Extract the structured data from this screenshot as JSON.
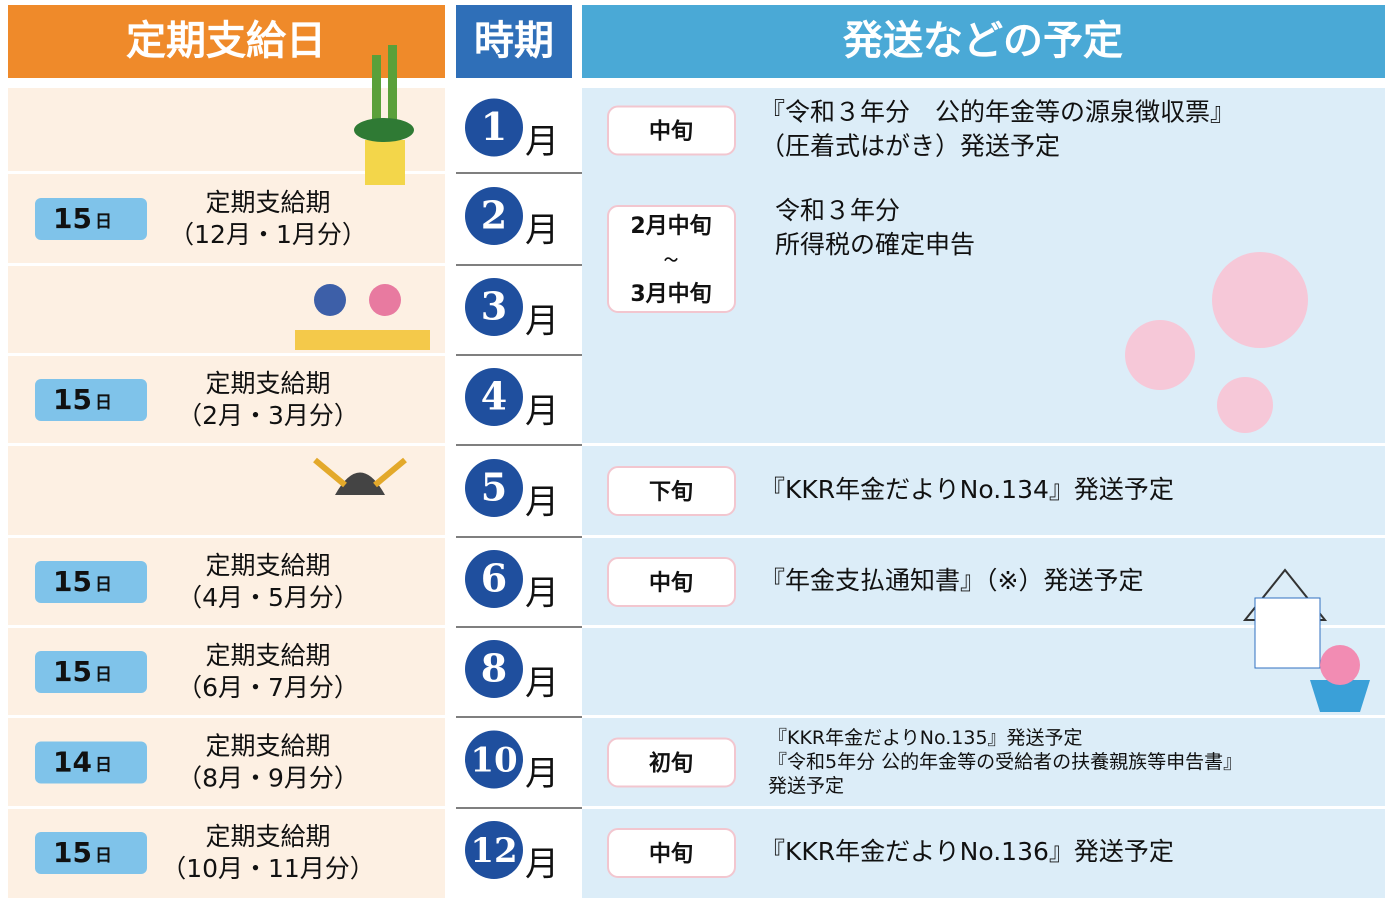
{
  "header": {
    "payday": "定期支給日",
    "period": "時期",
    "schedule": "発送などの予定"
  },
  "rows": [
    {
      "month": "1",
      "month_unit": "月",
      "schedule": {
        "badge": [
          "中旬"
        ],
        "lines": [
          "『令和３年分　公的年金等の源泉徴収票』",
          "（圧着式はがき）発送予定"
        ]
      }
    },
    {
      "day": "15",
      "day_unit": "日",
      "pay_title": "定期支給期",
      "pay_months": "（12月・1月分）",
      "month": "2",
      "month_unit": "月",
      "schedule": {
        "badge": [
          "2月中旬",
          "～",
          "3月中旬"
        ],
        "lines": [
          "令和３年分",
          "所得税の確定申告"
        ]
      }
    },
    {
      "month": "3",
      "month_unit": "月"
    },
    {
      "day": "15",
      "day_unit": "日",
      "pay_title": "定期支給期",
      "pay_months": "（2月・3月分）",
      "month": "4",
      "month_unit": "月"
    },
    {
      "month": "5",
      "month_unit": "月",
      "schedule": {
        "badge": [
          "下旬"
        ],
        "lines": [
          "『KKR年金だよりNo.134』発送予定"
        ]
      }
    },
    {
      "day": "15",
      "day_unit": "日",
      "pay_title": "定期支給期",
      "pay_months": "（4月・5月分）",
      "month": "6",
      "month_unit": "月",
      "schedule": {
        "badge": [
          "中旬"
        ],
        "lines": [
          "『年金支払通知書』（※）発送予定"
        ]
      }
    },
    {
      "day": "15",
      "day_unit": "日",
      "pay_title": "定期支給期",
      "pay_months": "（6月・7月分）",
      "month": "8",
      "month_unit": "月"
    },
    {
      "day": "14",
      "day_unit": "日",
      "pay_title": "定期支給期",
      "pay_months": "（8月・9月分）",
      "month": "10",
      "month_unit": "月",
      "schedule": {
        "badge": [
          "初旬"
        ],
        "lines": [
          "『KKR年金だよりNo.135』発送予定",
          "『令和5年分 公的年金等の受給者の扶養親族等申告書』",
          "発送予定"
        ]
      }
    },
    {
      "day": "15",
      "day_unit": "日",
      "pay_title": "定期支給期",
      "pay_months": "（10月・11月分）",
      "month": "12",
      "month_unit": "月",
      "schedule": {
        "badge": [
          "中旬"
        ],
        "lines": [
          "『KKR年金だよりNo.136』発送予定"
        ]
      }
    }
  ]
}
